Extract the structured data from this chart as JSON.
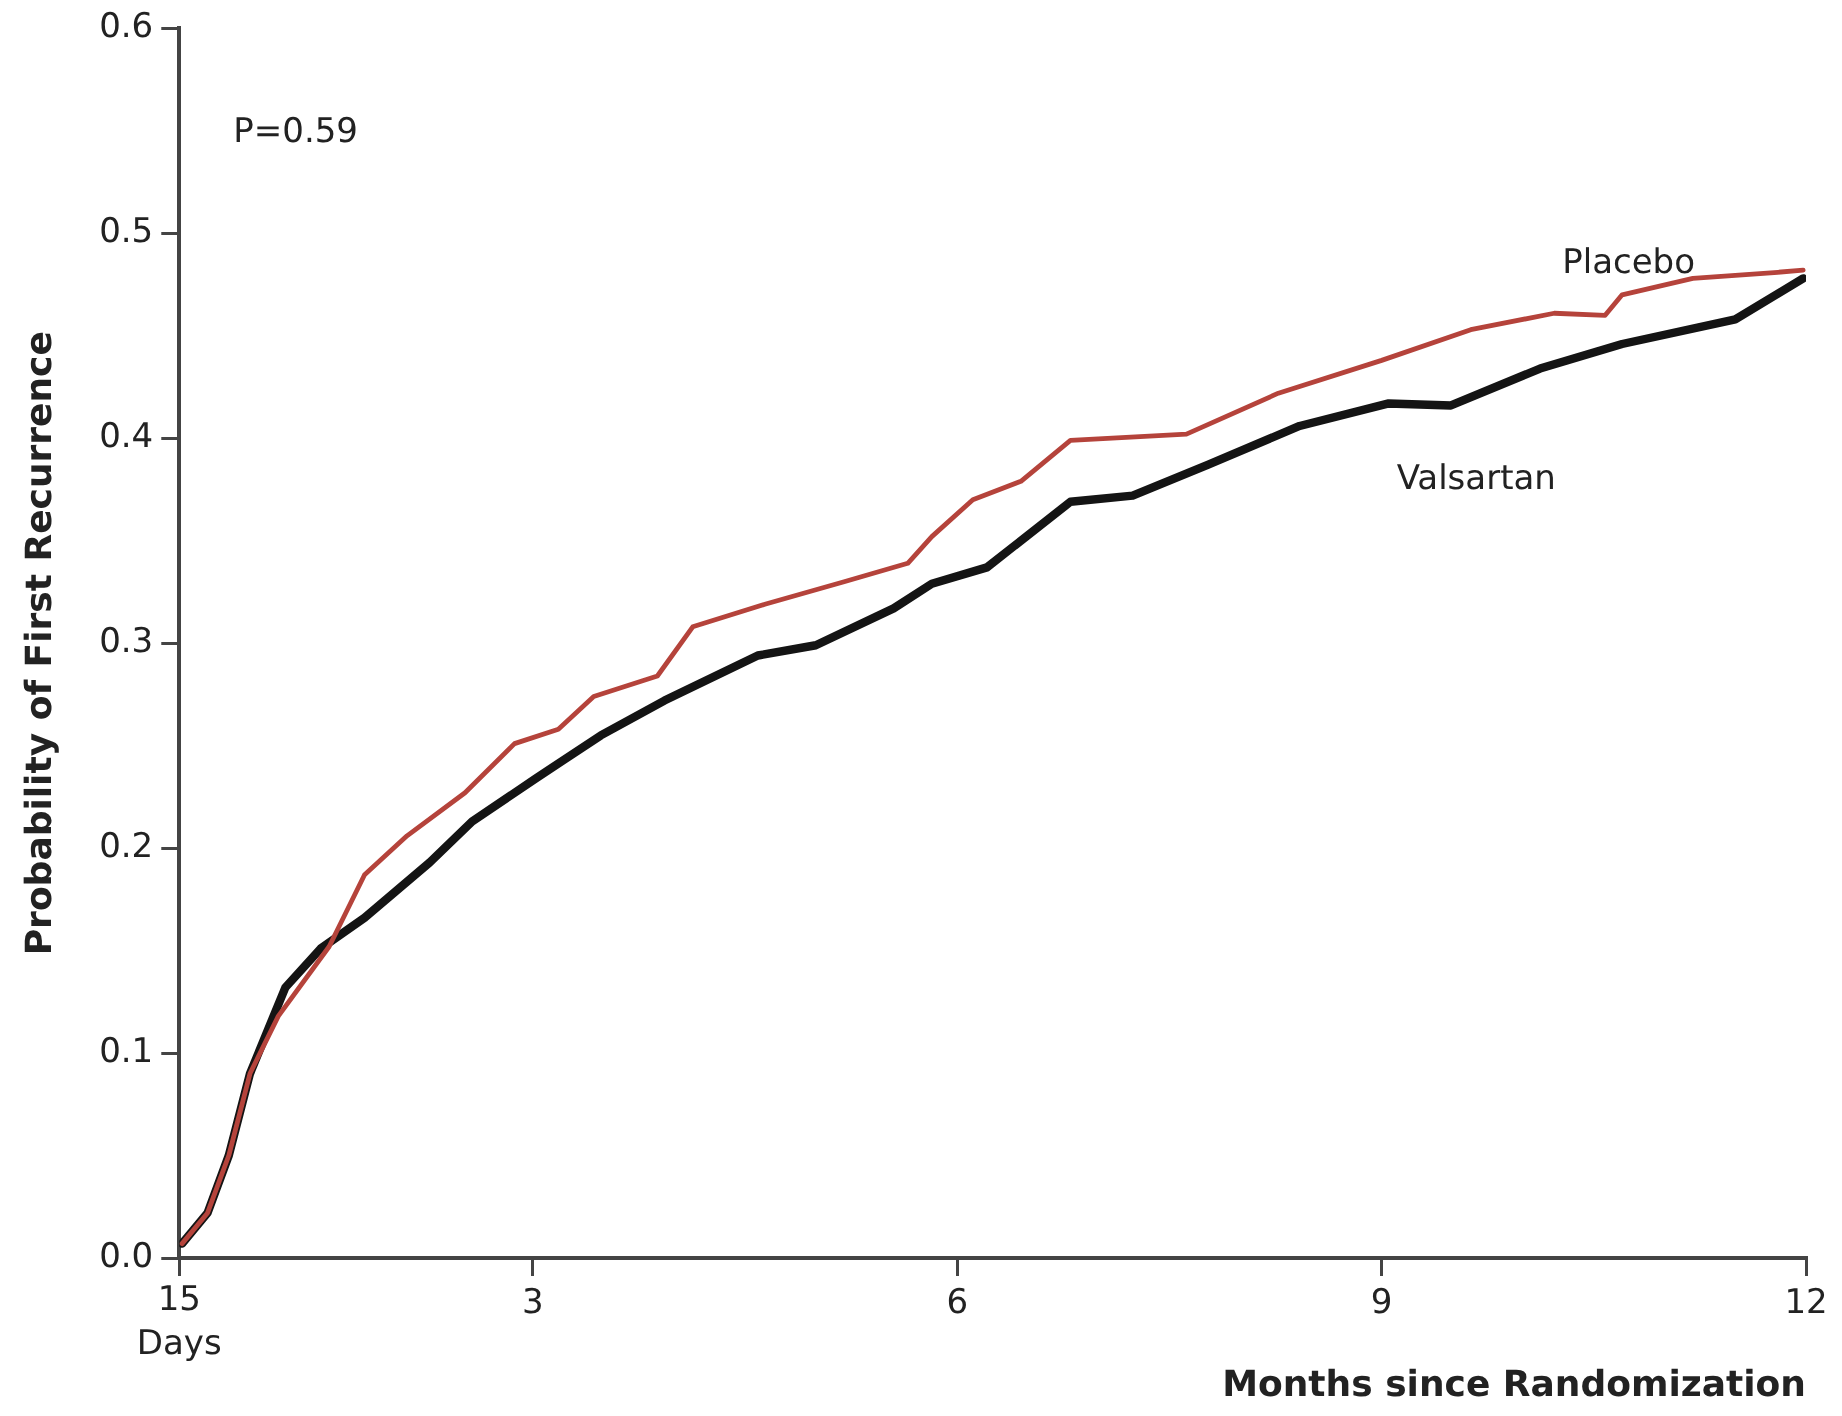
{
  "chart_data": {
    "type": "line",
    "xlabel": "Months since Randomization",
    "ylabel": "Probability of First Recurrence",
    "annotations": [
      "P=0.59",
      "15\nDays"
    ],
    "xlim": [
      0.5,
      12
    ],
    "xticks": [
      {
        "value": 0.5,
        "label": null
      },
      3,
      6,
      9,
      12
    ],
    "ylim": [
      0,
      0.6
    ],
    "yticks": [
      {
        "value": 0,
        "label": "0.0"
      },
      {
        "value": 0.1,
        "label": "0.1"
      },
      {
        "value": 0.2,
        "label": "0.2"
      },
      {
        "value": 0.3,
        "label": "0.3"
      },
      {
        "value": 0.4,
        "label": "0.4"
      },
      {
        "value": 0.5,
        "label": "0.5"
      },
      {
        "value": 0.6,
        "label": "0.6"
      }
    ],
    "grid": false,
    "legend": false,
    "marker": "none",
    "line_style": "solid",
    "series": [
      {
        "name": "Placebo",
        "color": "#b5433b",
        "x": [
          0.52,
          0.7,
          0.85,
          1.0,
          1.2,
          1.56,
          1.81,
          2.11,
          2.52,
          2.87,
          3.18,
          3.43,
          3.88,
          4.13,
          4.64,
          5.2,
          5.65,
          5.82,
          6.11,
          6.45,
          6.8,
          7.62,
          8.27,
          9.0,
          9.63,
          10.22,
          10.58,
          10.7,
          11.2,
          11.8,
          11.98
        ],
        "values": [
          0.007,
          0.022,
          0.05,
          0.09,
          0.118,
          0.152,
          0.187,
          0.206,
          0.227,
          0.251,
          0.258,
          0.274,
          0.284,
          0.308,
          0.319,
          0.33,
          0.339,
          0.352,
          0.37,
          0.379,
          0.399,
          0.402,
          0.422,
          0.438,
          0.453,
          0.461,
          0.46,
          0.47,
          0.478,
          0.481,
          0.482
        ]
      },
      {
        "name": "Valsartan",
        "color": "#141414",
        "x": [
          0.52,
          0.7,
          0.85,
          1.0,
          1.25,
          1.5,
          1.81,
          2.27,
          2.57,
          3.02,
          3.48,
          3.93,
          4.59,
          5.0,
          5.55,
          5.82,
          6.21,
          6.8,
          7.24,
          7.77,
          8.42,
          9.05,
          9.49,
          10.12,
          10.7,
          11.5,
          11.98
        ],
        "values": [
          0.007,
          0.022,
          0.05,
          0.09,
          0.132,
          0.151,
          0.166,
          0.193,
          0.213,
          0.234,
          0.255,
          0.272,
          0.294,
          0.299,
          0.317,
          0.329,
          0.337,
          0.369,
          0.372,
          0.387,
          0.406,
          0.417,
          0.416,
          0.434,
          0.446,
          0.458,
          0.478
        ]
      }
    ]
  }
}
